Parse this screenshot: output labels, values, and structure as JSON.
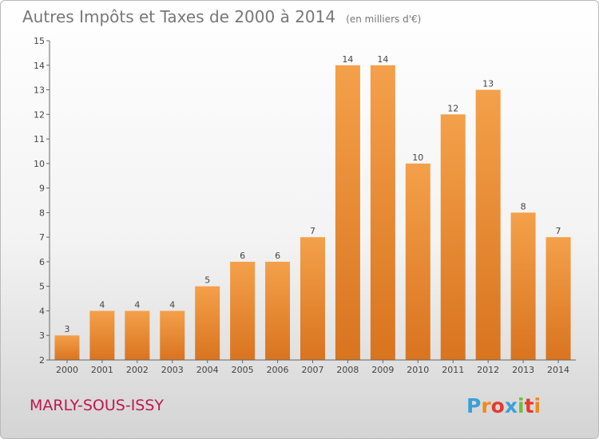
{
  "chart_data": {
    "type": "bar",
    "title": "Autres Impôts et Taxes de 2000 à 2014",
    "unit_note": "(en milliers d'€)",
    "categories": [
      "2000",
      "2001",
      "2002",
      "2003",
      "2004",
      "2005",
      "2006",
      "2007",
      "2008",
      "2009",
      "2010",
      "2011",
      "2012",
      "2013",
      "2014"
    ],
    "values": [
      3,
      4,
      4,
      4,
      5,
      6,
      6,
      7,
      14,
      14,
      10,
      12,
      13,
      8,
      7
    ],
    "data_labels": [
      "3",
      "4",
      "4",
      "4",
      "5",
      "6",
      "6",
      "7",
      "14",
      "14",
      "10",
      "12",
      "13",
      "8",
      "7"
    ],
    "y_ticks": [
      "2",
      "3",
      "4",
      "5",
      "6",
      "7",
      "8",
      "9",
      "10",
      "11",
      "12",
      "13",
      "14",
      "15"
    ],
    "ylim": [
      2,
      15
    ],
    "grid": false,
    "bar_color": "#f4a04a",
    "bar_color_dark": "#d9741f"
  },
  "footer": {
    "place_name": "MARLY-SOUS-ISSY",
    "logo_text": "Proxiti",
    "logo_colors": [
      "#3aa0d8",
      "#f08a1c",
      "#e23b2e",
      "#3aa0d8",
      "#6cbf3a",
      "#e23b2e",
      "#f08a1c"
    ]
  }
}
